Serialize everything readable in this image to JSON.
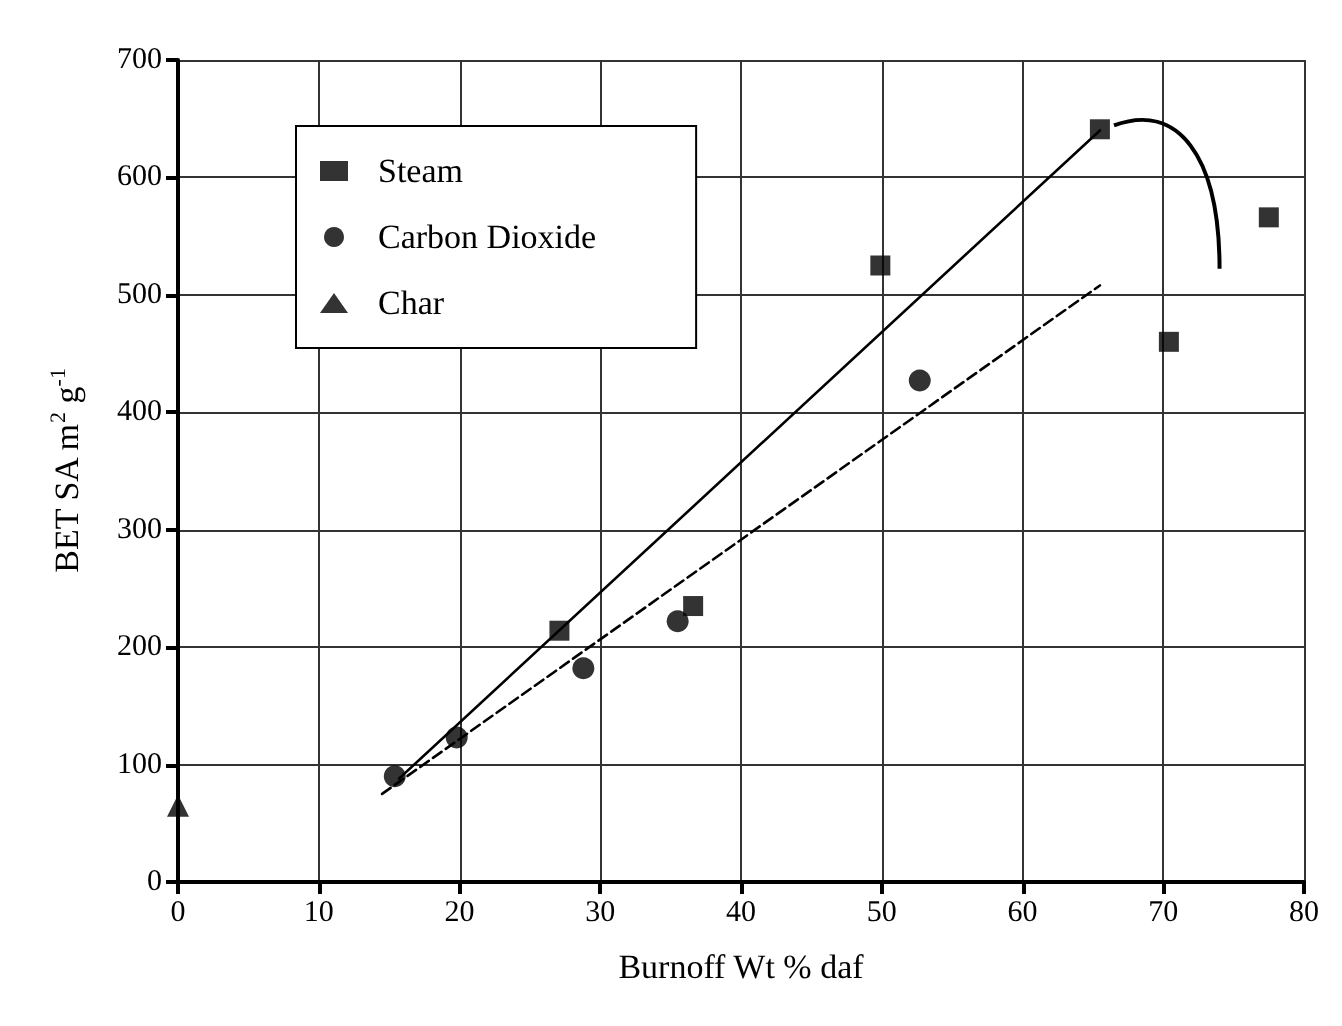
{
  "chart_data": {
    "type": "scatter",
    "xlabel": "Burnoff Wt % daf",
    "ylabel": "BET SA m$^{2}$ g$^{-1}$",
    "xlim": [
      0,
      80
    ],
    "xticks": [
      0,
      10,
      20,
      30,
      40,
      50,
      60,
      70,
      80
    ],
    "ylim": [
      0,
      700
    ],
    "yticks": [
      0,
      100,
      200,
      300,
      400,
      500,
      600,
      700
    ],
    "grid": true,
    "legend": "top left",
    "series": [
      {
        "name": "Steam",
        "color": "#000000",
        "marker": "square",
        "x": [
          27.1,
          36.6,
          49.9,
          65.5,
          70.4,
          77.5
        ],
        "values": [
          214,
          235,
          525,
          641,
          460,
          566
        ]
      },
      {
        "name": "Carbon Dioxide",
        "color": "#000000",
        "marker": "circle",
        "x": [
          15.4,
          19.8,
          28.8,
          35.5,
          52.7
        ],
        "values": [
          90,
          123,
          182,
          222,
          427
        ]
      },
      {
        "name": "Char",
        "color": "#000000",
        "marker": "triangle",
        "x": [
          0
        ],
        "values": [
          65
        ]
      },
      {
        "type": "line",
        "color": "#000000",
        "marker": "none",
        "line_style": "solid",
        "x": [
          15.7,
          65.5
        ],
        "values": [
          88,
          640
        ]
      },
      {
        "type": "line",
        "color": "#000000",
        "marker": "none",
        "line_style": "dashed",
        "x": [
          14.5,
          65.5
        ],
        "values": [
          75,
          508
        ]
      }
    ]
  }
}
